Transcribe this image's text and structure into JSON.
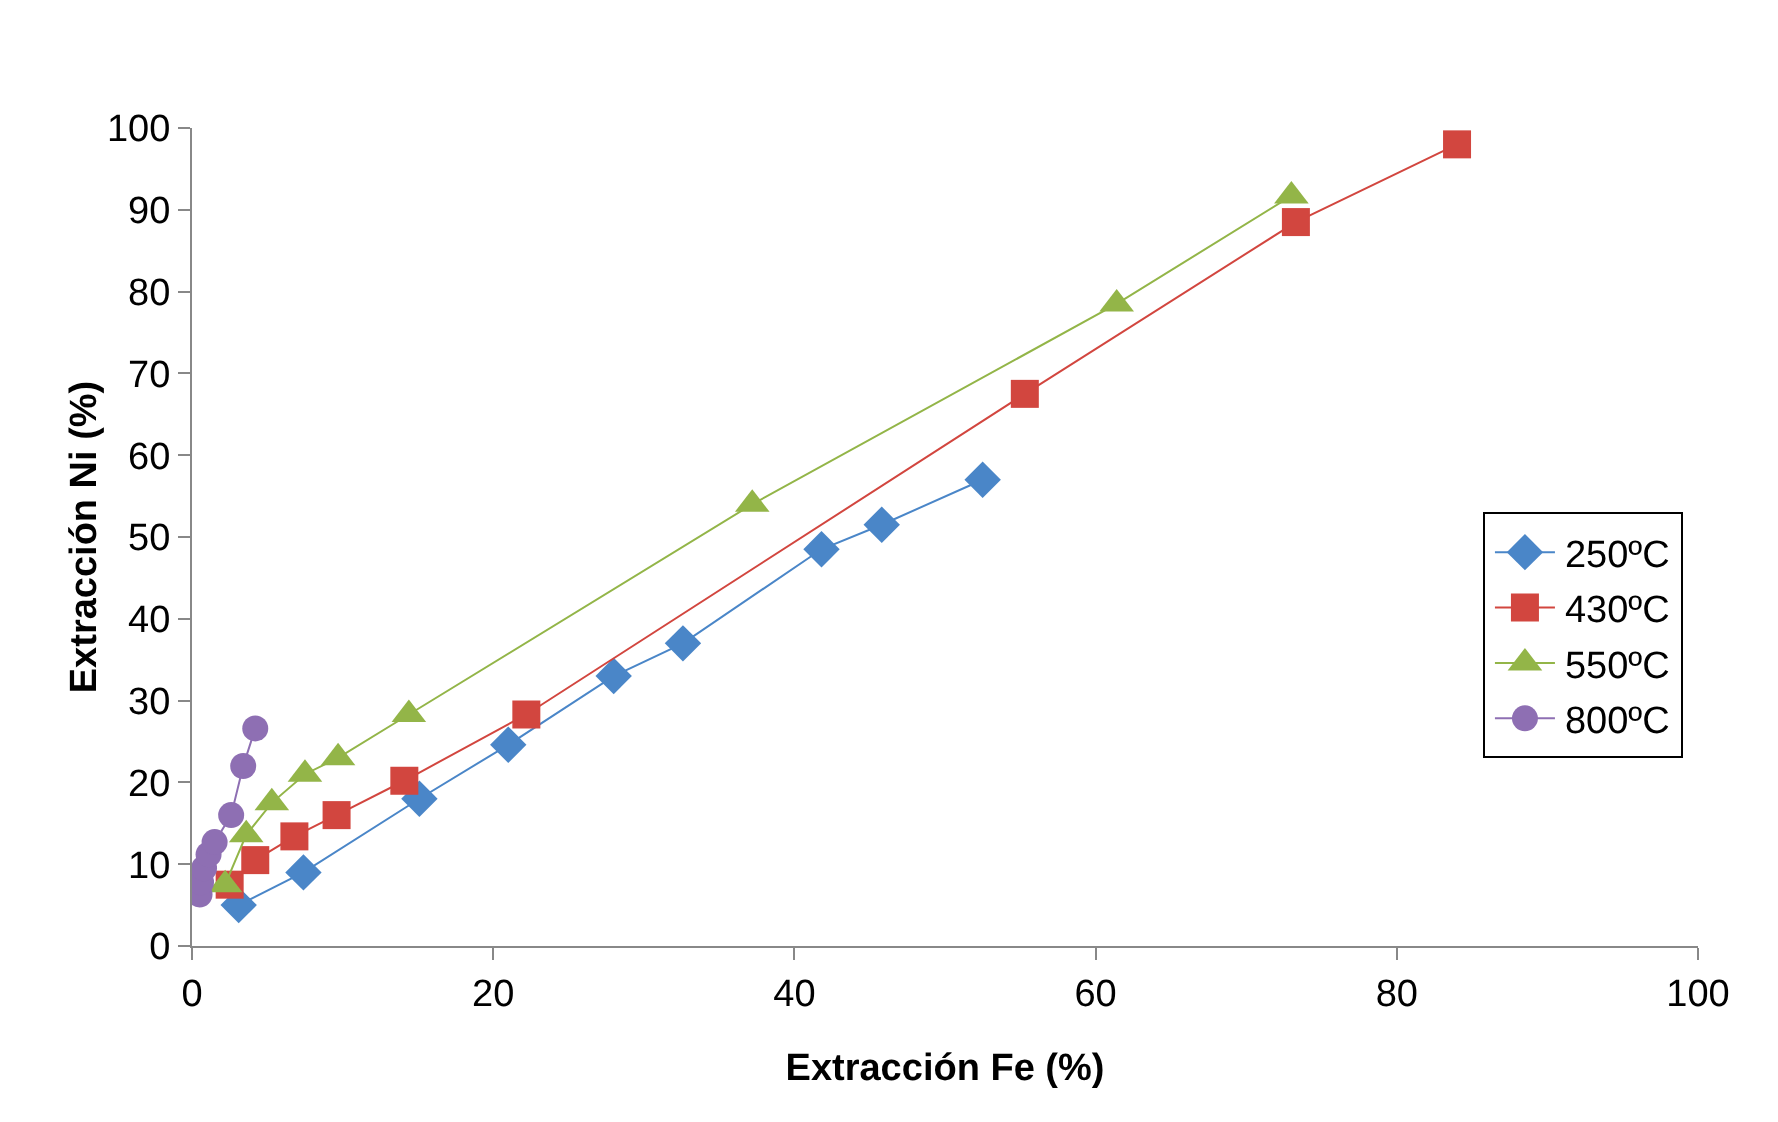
{
  "chart_data": {
    "type": "line",
    "xlabel": "Extracción Fe (%)",
    "ylabel": "Extracción Ni (%)",
    "xlim": [
      0,
      100
    ],
    "xticks": [
      0,
      20,
      40,
      60,
      80,
      100
    ],
    "ylim": [
      0,
      100
    ],
    "yticks": [
      0,
      10,
      20,
      30,
      40,
      50,
      60,
      70,
      80,
      90,
      100
    ],
    "grid": false,
    "legend": "right",
    "series": [
      {
        "name": "250ºC",
        "color": "#4a86c8",
        "marker": "diamond",
        "x": [
          3.1,
          7.4,
          15.1,
          21,
          28,
          32.6,
          41.8,
          45.8,
          52.5
        ],
        "values": [
          5,
          9,
          18,
          24.6,
          33,
          37,
          48.5,
          51.5,
          57
        ]
      },
      {
        "name": "430ºC",
        "color": "#d2463f",
        "marker": "square",
        "x": [
          2.5,
          4.2,
          6.8,
          9.6,
          14.1,
          22.2,
          55.3,
          73.3,
          84
        ],
        "values": [
          7.5,
          10.5,
          13.4,
          16,
          20.2,
          28.3,
          67.5,
          88.5,
          98
        ]
      },
      {
        "name": "550ºC",
        "color": "#93b548",
        "marker": "triangle",
        "x": [
          2.2,
          3.6,
          5.3,
          7.5,
          9.7,
          14.4,
          37.2,
          61.4,
          73
        ],
        "values": [
          7.5,
          13.6,
          17.5,
          21,
          23,
          28.3,
          54,
          78.5,
          91.7
        ]
      },
      {
        "name": "800ºC",
        "color": "#8e6fb3",
        "marker": "circle",
        "x": [
          0.5,
          0.6,
          0.8,
          1.1,
          1.5,
          2.6,
          3.4,
          4.2
        ],
        "values": [
          6.3,
          7.8,
          9.5,
          11.2,
          12.7,
          16,
          22,
          26.6
        ]
      }
    ]
  }
}
